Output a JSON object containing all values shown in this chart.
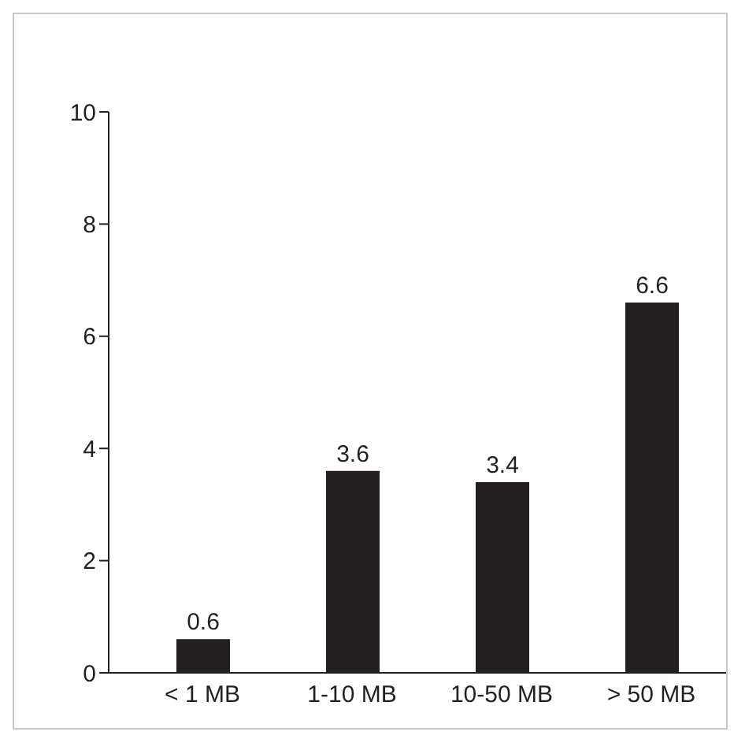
{
  "chart_data": {
    "type": "bar",
    "categories": [
      "< 1 MB",
      "1-10 MB",
      "10-50 MB",
      "> 50 MB"
    ],
    "values": [
      0.6,
      3.6,
      3.4,
      6.6
    ],
    "color": "#231f20",
    "ylim": [
      0,
      10
    ],
    "yticks": [
      0,
      2,
      4,
      6,
      8,
      10
    ],
    "data_labels": true,
    "grid": false,
    "legend": false
  }
}
